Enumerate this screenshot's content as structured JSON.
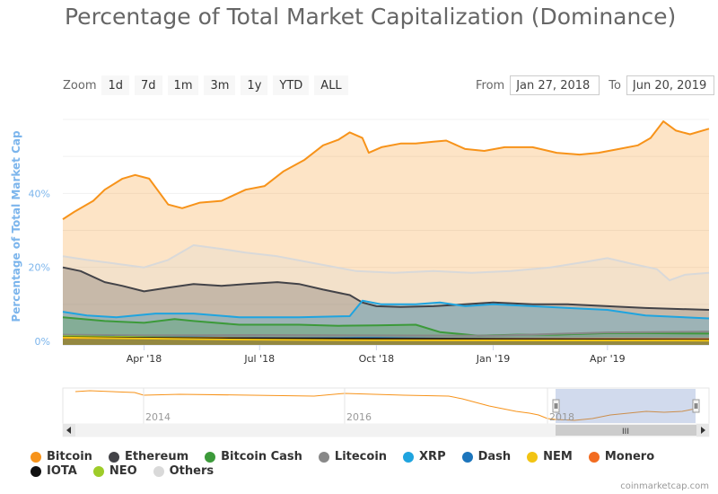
{
  "title": "Percentage of Total Market Capitalization (Dominance)",
  "zoom": {
    "label": "Zoom",
    "buttons": [
      "1d",
      "7d",
      "1m",
      "3m",
      "1y",
      "YTD",
      "ALL"
    ]
  },
  "range": {
    "from_label": "From",
    "from_value": "Jan 27, 2018",
    "to_label": "To",
    "to_value": "Jun 20, 2019"
  },
  "credits": "coinmarketcap.com",
  "navigator": {
    "labels": [
      "2014",
      "2016",
      "2018"
    ],
    "scroll_grip": "III"
  },
  "chart_data": {
    "type": "area",
    "ylabel": "Percentage of Total Market Cap",
    "x_range": [
      "2018-01-27",
      "2019-06-20"
    ],
    "y_range": [
      0,
      60
    ],
    "y_ticks": [
      "0%",
      "20%",
      "40%"
    ],
    "y_tick_values": [
      0,
      20,
      40
    ],
    "x_ticks": [
      "Apr '18",
      "Jul '18",
      "Oct '18",
      "Jan '19",
      "Apr '19"
    ],
    "x_tick_dates": [
      "2018-04-01",
      "2018-07-01",
      "2018-10-01",
      "2019-01-01",
      "2019-04-01"
    ],
    "legend_placement": "bottom",
    "series": [
      {
        "name": "Bitcoin",
        "color": "#f7931a",
        "points": [
          [
            "2018-01-27",
            33
          ],
          [
            "2018-02-05",
            35
          ],
          [
            "2018-02-20",
            38
          ],
          [
            "2018-03-01",
            41
          ],
          [
            "2018-03-15",
            44
          ],
          [
            "2018-03-25",
            45
          ],
          [
            "2018-04-05",
            44
          ],
          [
            "2018-04-20",
            37
          ],
          [
            "2018-05-01",
            36
          ],
          [
            "2018-05-15",
            37.5
          ],
          [
            "2018-06-01",
            38
          ],
          [
            "2018-06-20",
            41
          ],
          [
            "2018-07-05",
            42
          ],
          [
            "2018-07-20",
            46
          ],
          [
            "2018-08-05",
            49
          ],
          [
            "2018-08-20",
            53
          ],
          [
            "2018-09-01",
            54.5
          ],
          [
            "2018-09-10",
            56.5
          ],
          [
            "2018-09-20",
            55
          ],
          [
            "2018-09-25",
            51
          ],
          [
            "2018-10-05",
            52.5
          ],
          [
            "2018-10-20",
            53.5
          ],
          [
            "2018-11-01",
            53.5
          ],
          [
            "2018-11-15",
            54
          ],
          [
            "2018-11-25",
            54.3
          ],
          [
            "2018-12-10",
            52
          ],
          [
            "2018-12-25",
            51.5
          ],
          [
            "2019-01-10",
            52.5
          ],
          [
            "2019-02-01",
            52.5
          ],
          [
            "2019-02-20",
            51
          ],
          [
            "2019-03-10",
            50.5
          ],
          [
            "2019-03-25",
            51
          ],
          [
            "2019-04-10",
            52
          ],
          [
            "2019-04-25",
            53
          ],
          [
            "2019-05-05",
            55
          ],
          [
            "2019-05-15",
            59.5
          ],
          [
            "2019-05-25",
            57
          ],
          [
            "2019-06-05",
            56
          ],
          [
            "2019-06-20",
            57.5
          ]
        ]
      },
      {
        "name": "Ethereum",
        "color": "#434348",
        "points": [
          [
            "2018-01-27",
            20
          ],
          [
            "2018-02-10",
            19
          ],
          [
            "2018-03-01",
            16
          ],
          [
            "2018-03-15",
            15
          ],
          [
            "2018-04-01",
            13.5
          ],
          [
            "2018-04-20",
            14.5
          ],
          [
            "2018-05-10",
            15.5
          ],
          [
            "2018-06-01",
            15
          ],
          [
            "2018-06-20",
            15.5
          ],
          [
            "2018-07-15",
            16
          ],
          [
            "2018-08-01",
            15.5
          ],
          [
            "2018-08-20",
            14
          ],
          [
            "2018-09-10",
            12.5
          ],
          [
            "2018-09-20",
            10.5
          ],
          [
            "2018-10-01",
            9.5
          ],
          [
            "2018-10-20",
            9.3
          ],
          [
            "2018-11-15",
            9.5
          ],
          [
            "2018-12-10",
            10
          ],
          [
            "2019-01-01",
            10.5
          ],
          [
            "2019-02-01",
            10
          ],
          [
            "2019-03-01",
            10
          ],
          [
            "2019-04-01",
            9.5
          ],
          [
            "2019-05-01",
            9
          ],
          [
            "2019-06-20",
            8.5
          ]
        ]
      },
      {
        "name": "Bitcoin Cash",
        "color": "#3c9a3a",
        "points": [
          [
            "2018-01-27",
            6.5
          ],
          [
            "2018-03-01",
            5.5
          ],
          [
            "2018-04-01",
            5
          ],
          [
            "2018-04-25",
            6
          ],
          [
            "2018-05-10",
            5.5
          ],
          [
            "2018-06-15",
            4.5
          ],
          [
            "2018-08-01",
            4.5
          ],
          [
            "2018-09-01",
            4.2
          ],
          [
            "2018-10-01",
            4.3
          ],
          [
            "2018-11-01",
            4.5
          ],
          [
            "2018-11-20",
            2.5
          ],
          [
            "2018-12-20",
            1.5
          ],
          [
            "2019-01-20",
            1.8
          ],
          [
            "2019-02-20",
            1.8
          ],
          [
            "2019-04-01",
            2.2
          ],
          [
            "2019-05-01",
            2.2
          ],
          [
            "2019-06-20",
            2.1
          ]
        ]
      },
      {
        "name": "Litecoin",
        "color": "#888888",
        "points": [
          [
            "2018-01-27",
            1.8
          ],
          [
            "2018-04-01",
            1.6
          ],
          [
            "2018-07-01",
            1.7
          ],
          [
            "2018-10-01",
            1.6
          ],
          [
            "2019-01-01",
            1.5
          ],
          [
            "2019-04-01",
            2.4
          ],
          [
            "2019-06-20",
            2.6
          ]
        ]
      },
      {
        "name": "XRP",
        "color": "#1fa4df",
        "points": [
          [
            "2018-01-27",
            8
          ],
          [
            "2018-02-15",
            7
          ],
          [
            "2018-03-10",
            6.5
          ],
          [
            "2018-04-10",
            7.5
          ],
          [
            "2018-05-10",
            7.5
          ],
          [
            "2018-06-15",
            6.5
          ],
          [
            "2018-08-01",
            6.5
          ],
          [
            "2018-09-10",
            6.8
          ],
          [
            "2018-09-20",
            11
          ],
          [
            "2018-10-05",
            10
          ],
          [
            "2018-11-01",
            10
          ],
          [
            "2018-11-20",
            10.5
          ],
          [
            "2018-12-10",
            9.5
          ],
          [
            "2019-01-01",
            10
          ],
          [
            "2019-02-01",
            9.5
          ],
          [
            "2019-03-01",
            9
          ],
          [
            "2019-04-01",
            8.5
          ],
          [
            "2019-05-01",
            7
          ],
          [
            "2019-06-20",
            6.2
          ]
        ]
      },
      {
        "name": "Dash",
        "color": "#1c75bc",
        "points": [
          [
            "2018-01-27",
            1.4
          ],
          [
            "2018-06-01",
            1.0
          ],
          [
            "2018-10-01",
            0.9
          ],
          [
            "2019-01-01",
            0.6
          ],
          [
            "2019-04-01",
            0.6
          ],
          [
            "2019-06-20",
            0.6
          ]
        ]
      },
      {
        "name": "NEM",
        "color": "#f2c413",
        "points": [
          [
            "2018-01-27",
            1.0
          ],
          [
            "2018-06-01",
            0.5
          ],
          [
            "2018-10-01",
            0.3
          ],
          [
            "2019-06-20",
            0.2
          ]
        ]
      },
      {
        "name": "Monero",
        "color": "#f26c21",
        "points": [
          [
            "2018-01-27",
            0.9
          ],
          [
            "2018-06-01",
            0.9
          ],
          [
            "2018-10-01",
            0.7
          ],
          [
            "2019-06-20",
            0.6
          ]
        ]
      },
      {
        "name": "IOTA",
        "color": "#111111",
        "points": [
          [
            "2018-01-27",
            1.1
          ],
          [
            "2018-06-01",
            0.8
          ],
          [
            "2018-10-01",
            0.7
          ],
          [
            "2019-06-20",
            0.4
          ]
        ]
      },
      {
        "name": "NEO",
        "color": "#9ecc29",
        "points": [
          [
            "2018-01-27",
            1.4
          ],
          [
            "2018-05-01",
            1.0
          ],
          [
            "2018-10-01",
            0.6
          ],
          [
            "2019-06-20",
            0.3
          ]
        ]
      },
      {
        "name": "Others",
        "color": "#d9d9d9",
        "points": [
          [
            "2018-01-27",
            23
          ],
          [
            "2018-02-15",
            22
          ],
          [
            "2018-03-10",
            21
          ],
          [
            "2018-04-01",
            20
          ],
          [
            "2018-04-20",
            22
          ],
          [
            "2018-05-10",
            26
          ],
          [
            "2018-06-01",
            25
          ],
          [
            "2018-06-20",
            24
          ],
          [
            "2018-07-15",
            23
          ],
          [
            "2018-08-15",
            21
          ],
          [
            "2018-09-15",
            19
          ],
          [
            "2018-10-15",
            18.5
          ],
          [
            "2018-11-15",
            19
          ],
          [
            "2018-12-15",
            18.5
          ],
          [
            "2019-01-15",
            19
          ],
          [
            "2019-02-15",
            20
          ],
          [
            "2019-03-15",
            21.5
          ],
          [
            "2019-04-01",
            22.5
          ],
          [
            "2019-04-20",
            21
          ],
          [
            "2019-05-10",
            19.5
          ],
          [
            "2019-05-20",
            16.5
          ],
          [
            "2019-06-01",
            18
          ],
          [
            "2019-06-20",
            18.5
          ]
        ]
      }
    ]
  }
}
